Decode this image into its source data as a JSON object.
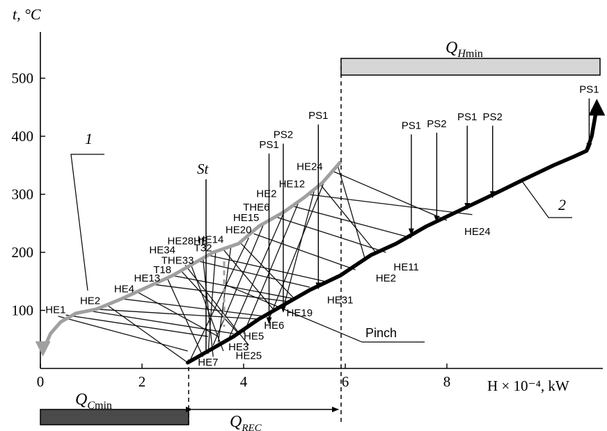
{
  "chart_data": {
    "type": "line",
    "title": "",
    "ylabel": "t, °C",
    "xlabel": "H × 10⁻⁴, kW",
    "xlim": [
      0,
      11
    ],
    "ylim": [
      0,
      560
    ],
    "x_ticks": [
      0,
      2,
      4,
      6,
      8
    ],
    "x_tick_labels": [
      "0",
      "2",
      "4",
      "6",
      "8"
    ],
    "y_ticks": [
      100,
      200,
      300,
      400,
      500
    ],
    "y_tick_labels": [
      "100",
      "200",
      "300",
      "400",
      "500"
    ],
    "grid": false,
    "series": [
      {
        "name": "1",
        "color": "#a0a0a0",
        "direction": "down",
        "points": [
          [
            0.05,
            30
          ],
          [
            0.2,
            60
          ],
          [
            0.4,
            80
          ],
          [
            0.7,
            95
          ],
          [
            1.1,
            102
          ],
          [
            1.6,
            120
          ],
          [
            2.1,
            140
          ],
          [
            2.6,
            160
          ],
          [
            3.0,
            180
          ],
          [
            3.4,
            200
          ],
          [
            3.9,
            215
          ],
          [
            4.3,
            245
          ],
          [
            4.8,
            270
          ],
          [
            5.2,
            295
          ],
          [
            5.55,
            320
          ],
          [
            5.9,
            355
          ]
        ]
      },
      {
        "name": "2",
        "color": "#000000",
        "direction": "up",
        "points": [
          [
            2.9,
            10
          ],
          [
            3.3,
            30
          ],
          [
            3.8,
            55
          ],
          [
            4.3,
            85
          ],
          [
            4.8,
            110
          ],
          [
            5.3,
            135
          ],
          [
            5.9,
            160
          ],
          [
            6.5,
            195
          ],
          [
            7.0,
            215
          ],
          [
            7.6,
            245
          ],
          [
            8.2,
            270
          ],
          [
            8.8,
            295
          ],
          [
            9.5,
            325
          ],
          [
            10.1,
            350
          ],
          [
            10.5,
            365
          ],
          [
            10.75,
            375
          ],
          [
            10.85,
            400
          ],
          [
            10.95,
            450
          ]
        ]
      }
    ],
    "annotations": {
      "Q_H_min": {
        "label": "Q",
        "sub_italic": "H",
        "sub": "min",
        "x_start": 5.9,
        "x_end": 10.95
      },
      "Q_C_min": {
        "label": "Q",
        "sub_italic": "C",
        "sub": "min",
        "x_start": 0,
        "x_end": 2.9
      },
      "Q_REC": {
        "label": "Q",
        "sub_italic": "REC",
        "x_start": 2.9,
        "x_end": 5.9
      },
      "pinch_label": "Pinch",
      "st_label": "St",
      "curve_labels": [
        "1",
        "2"
      ]
    },
    "hot_labels": [
      {
        "text": "HE1",
        "x": 0.3,
        "y": 95
      },
      {
        "text": "HE2",
        "x": 0.98,
        "y": 111
      },
      {
        "text": "HE4",
        "x": 1.65,
        "y": 131
      },
      {
        "text": "HE13",
        "x": 2.1,
        "y": 150
      },
      {
        "text": "T18",
        "x": 2.4,
        "y": 164
      },
      {
        "text": "THE33",
        "x": 2.7,
        "y": 180
      },
      {
        "text": "HE34",
        "x": 2.4,
        "y": 198
      },
      {
        "text": "HE28HE",
        "x": 2.9,
        "y": 214
      },
      {
        "text": "T32",
        "x": 3.2,
        "y": 202
      },
      {
        "text": "HE14",
        "x": 3.35,
        "y": 216
      },
      {
        "text": "HE20",
        "x": 3.9,
        "y": 233
      },
      {
        "text": "HE15",
        "x": 4.05,
        "y": 254
      },
      {
        "text": "THE6",
        "x": 4.25,
        "y": 272
      },
      {
        "text": "HE2",
        "x": 4.45,
        "y": 295
      },
      {
        "text": "HE12",
        "x": 4.95,
        "y": 312
      },
      {
        "text": "HE24",
        "x": 5.3,
        "y": 342
      }
    ],
    "cold_labels": [
      {
        "text": "HE7",
        "x": 3.3,
        "y": 5
      },
      {
        "text": "HE25",
        "x": 4.1,
        "y": 16
      },
      {
        "text": "HE3",
        "x": 3.9,
        "y": 31
      },
      {
        "text": "HE5",
        "x": 4.2,
        "y": 50
      },
      {
        "text": "HE6",
        "x": 4.6,
        "y": 68
      },
      {
        "text": "HE19",
        "x": 5.1,
        "y": 90
      },
      {
        "text": "HE31",
        "x": 5.9,
        "y": 112
      },
      {
        "text": "HE2",
        "x": 6.8,
        "y": 150
      },
      {
        "text": "HE11",
        "x": 7.2,
        "y": 169
      },
      {
        "text": "HE24",
        "x": 8.6,
        "y": 230
      }
    ],
    "utility_arrows": [
      {
        "text": "PS1",
        "x": 4.5,
        "y_top": 375,
        "y_end": 75
      },
      {
        "text": "PS2",
        "x": 4.78,
        "y_top": 392,
        "y_end": 95
      },
      {
        "text": "PS1",
        "x": 5.47,
        "y_top": 425,
        "y_end": 135
      },
      {
        "text": "PS1",
        "x": 7.3,
        "y_top": 408,
        "y_end": 228
      },
      {
        "text": "PS2",
        "x": 7.8,
        "y_top": 411,
        "y_end": 250
      },
      {
        "text": "PS1",
        "x": 8.4,
        "y_top": 423,
        "y_end": 272
      },
      {
        "text": "PS2",
        "x": 8.9,
        "y_top": 423,
        "y_end": 292
      },
      {
        "text": "PS1",
        "x": 10.8,
        "y_top": 470,
        "y_end": 375
      }
    ],
    "exchanger_lines": [
      [
        [
          0.35,
          90
        ],
        [
          2.9,
          30
        ]
      ],
      [
        [
          0.5,
          92
        ],
        [
          3.3,
          55
        ]
      ],
      [
        [
          0.9,
          100
        ],
        [
          3.8,
          60
        ]
      ],
      [
        [
          1.1,
          102
        ],
        [
          4.3,
          85
        ]
      ],
      [
        [
          1.3,
          110
        ],
        [
          2.9,
          10
        ]
      ],
      [
        [
          1.6,
          120
        ],
        [
          4.4,
          90
        ]
      ],
      [
        [
          1.9,
          132
        ],
        [
          3.5,
          55
        ]
      ],
      [
        [
          2.2,
          145
        ],
        [
          4.9,
          115
        ]
      ],
      [
        [
          2.5,
          155
        ],
        [
          3.2,
          20
        ]
      ],
      [
        [
          2.6,
          160
        ],
        [
          5.0,
          120
        ]
      ],
      [
        [
          2.75,
          170
        ],
        [
          3.9,
          60
        ]
      ],
      [
        [
          2.85,
          178
        ],
        [
          4.1,
          40
        ]
      ],
      [
        [
          2.95,
          182
        ],
        [
          3.6,
          30
        ]
      ],
      [
        [
          3.1,
          185
        ],
        [
          5.3,
          140
        ]
      ],
      [
        [
          3.2,
          190
        ],
        [
          3.4,
          20
        ]
      ],
      [
        [
          3.3,
          195
        ],
        [
          5.6,
          150
        ]
      ],
      [
        [
          3.45,
          202
        ],
        [
          3.3,
          25
        ]
      ],
      [
        [
          3.6,
          205
        ],
        [
          4.6,
          100
        ]
      ],
      [
        [
          3.75,
          210
        ],
        [
          3.5,
          45
        ]
      ],
      [
        [
          3.95,
          215
        ],
        [
          5.0,
          120
        ]
      ],
      [
        [
          4.1,
          225
        ],
        [
          2.95,
          15
        ]
      ],
      [
        [
          4.2,
          232
        ],
        [
          6.2,
          170
        ]
      ],
      [
        [
          4.4,
          250
        ],
        [
          3.4,
          40
        ]
      ],
      [
        [
          4.6,
          262
        ],
        [
          6.8,
          200
        ]
      ],
      [
        [
          4.8,
          270
        ],
        [
          3.7,
          50
        ]
      ],
      [
        [
          4.95,
          280
        ],
        [
          7.3,
          225
        ]
      ],
      [
        [
          5.1,
          290
        ],
        [
          4.0,
          60
        ]
      ],
      [
        [
          5.25,
          300
        ],
        [
          8.5,
          265
        ]
      ],
      [
        [
          5.4,
          310
        ],
        [
          4.8,
          110
        ]
      ],
      [
        [
          5.5,
          318
        ],
        [
          6.6,
          200
        ]
      ],
      [
        [
          5.6,
          325
        ],
        [
          4.5,
          85
        ]
      ],
      [
        [
          5.75,
          340
        ],
        [
          8.0,
          255
        ]
      ],
      [
        [
          5.85,
          350
        ],
        [
          6.4,
          185
        ]
      ]
    ]
  }
}
